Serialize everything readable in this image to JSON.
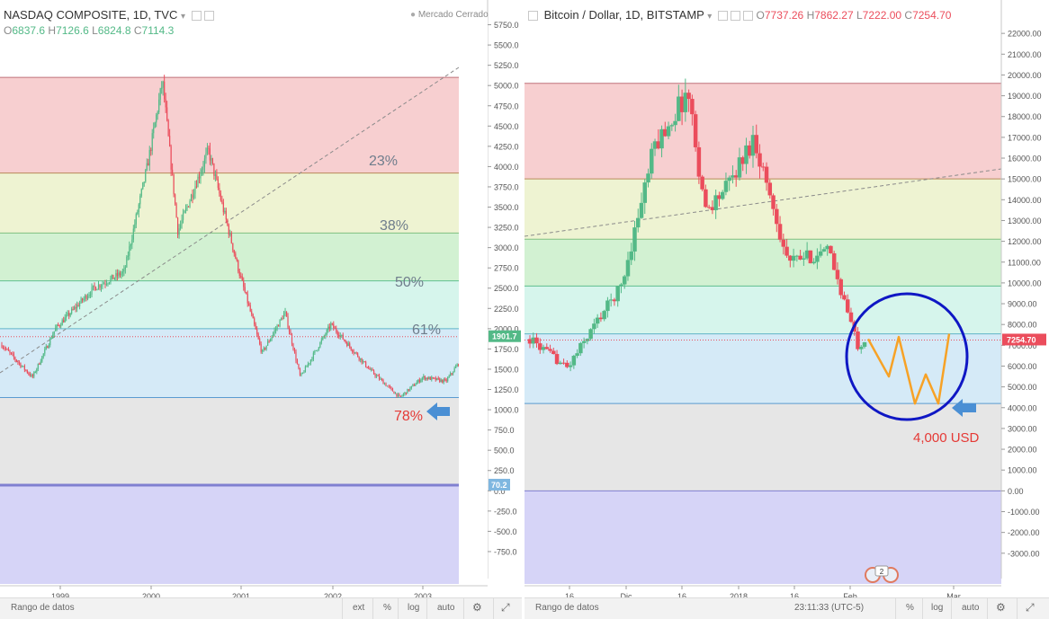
{
  "left": {
    "symbol": "NASDAQ COMPOSITE, 1D, TVC",
    "ohlc": {
      "o": "6837.6",
      "h": "7126.6",
      "l": "6824.8",
      "c": "7114.3"
    },
    "market_status": "Mercado Cerrado",
    "price_badge": "1901.7",
    "level_badge": "70.2",
    "fib_labels": [
      "23%",
      "38%",
      "50%",
      "61%",
      "78%"
    ],
    "x_ticks": [
      "1999",
      "2000",
      "2001",
      "2002",
      "2003"
    ],
    "bottom": {
      "range": "Rango de datos",
      "ext": "ext",
      "pct": "%",
      "log": "log",
      "auto": "auto"
    }
  },
  "right": {
    "symbol": "Bitcoin / Dollar, 1D, BITSTAMP",
    "ohlc": {
      "o": "7737.26",
      "h": "7862.27",
      "l": "7222.00",
      "c": "7254.70"
    },
    "price_badge": "7254.70",
    "annotation": "4,000 USD",
    "event_badge": "2",
    "x_ticks": [
      "16",
      "Dic",
      "16",
      "2018",
      "16",
      "Feb",
      "Mar"
    ],
    "bottom": {
      "range": "Rango de datos",
      "clock": "23:11:33 (UTC-5)",
      "pct": "%",
      "log": "log",
      "auto": "auto"
    }
  },
  "chart_data": [
    {
      "type": "candlestick",
      "title": "NASDAQ COMPOSITE, 1D, TVC",
      "ylim": [
        -950,
        5900
      ],
      "y_ticks": [
        "5750.0",
        "5500.0",
        "5250.0",
        "5000.0",
        "4750.0",
        "4500.0",
        "4250.0",
        "4000.0",
        "3750.0",
        "3500.0",
        "3250.0",
        "3000.0",
        "2750.0",
        "2500.0",
        "2250.0",
        "2000.0",
        "1750.0",
        "1500.0",
        "1250.0",
        "1000.0",
        "750.0",
        "500.0",
        "250.0",
        "0.0",
        "-250.0",
        "-500.0",
        "-750.0"
      ],
      "x_ticks": [
        "1999",
        "2000",
        "2001",
        "2002",
        "2003"
      ],
      "fib_levels": [
        5100,
        3920,
        3180,
        2590,
        2000,
        1150,
        70.2
      ],
      "fib_labels": [
        "23%",
        "38%",
        "50%",
        "61%",
        "78%"
      ],
      "price_path": [
        [
          "1998-06",
          1800
        ],
        [
          "1998-10",
          1400
        ],
        [
          "1999-01",
          2000
        ],
        [
          "1999-06",
          2500
        ],
        [
          "1999-10",
          2700
        ],
        [
          "2000-01",
          4000
        ],
        [
          "2000-03",
          5050
        ],
        [
          "2000-05",
          3200
        ],
        [
          "2000-09",
          4200
        ],
        [
          "2001-01",
          2700
        ],
        [
          "2001-04",
          1700
        ],
        [
          "2001-07",
          2200
        ],
        [
          "2001-09",
          1400
        ],
        [
          "2002-01",
          2050
        ],
        [
          "2002-06",
          1500
        ],
        [
          "2002-10",
          1150
        ],
        [
          "2003-01",
          1400
        ],
        [
          "2003-04",
          1350
        ],
        [
          "2003-07",
          1750
        ],
        [
          "2003-09",
          1901.7
        ]
      ],
      "last_price": 1901.7
    },
    {
      "type": "candlestick",
      "title": "Bitcoin / Dollar, 1D, BITSTAMP",
      "ylim": [
        -3700,
        23000
      ],
      "y_ticks": [
        "22000.00",
        "21000.00",
        "20000.00",
        "19000.00",
        "18000.00",
        "17000.00",
        "16000.00",
        "15000.00",
        "14000.00",
        "13000.00",
        "12000.00",
        "11000.00",
        "10000.00",
        "9000.00",
        "8000.00",
        "7000.00",
        "6000.00",
        "5000.00",
        "4000.00",
        "3000.00",
        "2000.00",
        "1000.00",
        "0.00",
        "-1000.00",
        "-2000.00",
        "-3000.00"
      ],
      "x_ticks": [
        "16",
        "Dic",
        "16",
        "2018",
        "16",
        "Feb",
        "Mar"
      ],
      "fib_levels": [
        19600,
        15000,
        12100,
        9850,
        7550,
        4200,
        0
      ],
      "price_path": [
        [
          "2017-11-01",
          7300
        ],
        [
          "2017-11-12",
          5900
        ],
        [
          "2017-11-20",
          8000
        ],
        [
          "2017-11-28",
          9900
        ],
        [
          "2017-12-07",
          16500
        ],
        [
          "2017-12-17",
          19200
        ],
        [
          "2017-12-22",
          13500
        ],
        [
          "2017-12-28",
          14500
        ],
        [
          "2018-01-06",
          17000
        ],
        [
          "2018-01-16",
          11000
        ],
        [
          "2018-01-28",
          11500
        ],
        [
          "2018-02-06",
          7000
        ],
        [
          "2018-02-08",
          7254.7
        ]
      ],
      "projection": [
        7300,
        5500,
        7400,
        4200,
        5600,
        4200,
        7550
      ],
      "last_price": 7254.7,
      "annotation": "4,000 USD"
    }
  ],
  "colors": {
    "up": "#53b987",
    "down": "#eb4d5c",
    "fib_red": "#f7cfd0",
    "fib_yellow": "#eef3d2",
    "fib_green": "#d2f1d2",
    "fib_mint": "#d6f5ec",
    "fib_blue": "#d5eaf7",
    "fib_gray": "#e6e6e6",
    "fib_purple": "#d6d4f7",
    "annotation_blue": "#0f17c4",
    "arrow_blue": "#4a8fd4",
    "projection": "#f7a226",
    "label_red": "#e53935",
    "label_gray": "#6f7d8c"
  }
}
